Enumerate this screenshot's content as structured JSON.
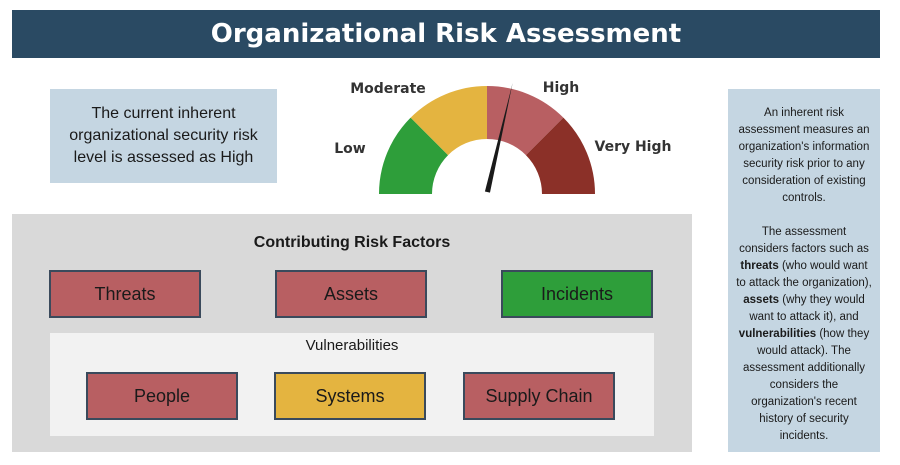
{
  "title": "Organizational Risk Assessment",
  "summary": "The current inherent organizational security risk level is assessed as High",
  "gauge": {
    "segments": [
      {
        "label": "Low",
        "color": "#2e9e3a"
      },
      {
        "label": "Moderate",
        "color": "#e4b440"
      },
      {
        "label": "High",
        "color": "#b85f62"
      },
      {
        "label": "Very High",
        "color": "#8b3028"
      }
    ],
    "current_level": "High",
    "needle_color": "#1a1a1a"
  },
  "factors": {
    "title": "Contributing Risk Factors",
    "items": [
      {
        "label": "Threats",
        "color": "#b85f62"
      },
      {
        "label": "Assets",
        "color": "#b85f62"
      },
      {
        "label": "Incidents",
        "color": "#2e9e3a"
      }
    ],
    "vulnerabilities": {
      "title": "Vulnerabilities",
      "items": [
        {
          "label": "People",
          "color": "#b85f62"
        },
        {
          "label": "Systems",
          "color": "#e4b440"
        },
        {
          "label": "Supply Chain",
          "color": "#b85f62"
        }
      ]
    }
  },
  "sidebar": {
    "p1": "An inherent risk assessment measures an organization's information security risk prior to any consideration of existing controls.",
    "p2_intro": "The assessment considers factors such as ",
    "threats": "threats",
    "p2_threats_desc": " (who would want to attack the organization), ",
    "assets": "assets",
    "p2_assets_desc": " (why they would want to attack it), and ",
    "vulnerabilities": "vulnerabilities",
    "p2_vuln_desc": " (how they would attack). The assessment additionally considers the organization's recent history of security incidents."
  }
}
